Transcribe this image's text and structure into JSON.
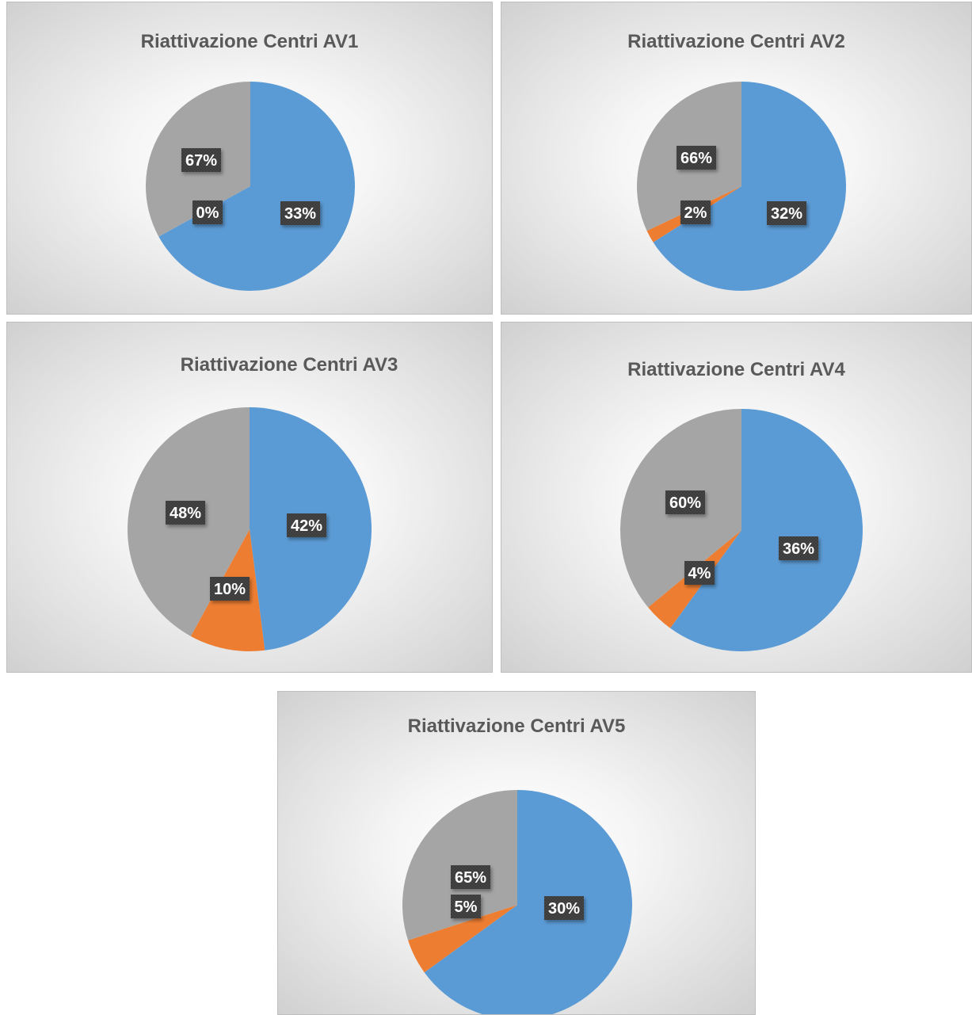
{
  "chart_data": [
    {
      "type": "pie",
      "title": "Riattivazione Centri AV1",
      "slices": [
        {
          "value": 67,
          "label": "67%",
          "color": "#5B9BD5"
        },
        {
          "value": 0,
          "label": "0%",
          "color": "#ED7D31"
        },
        {
          "value": 33,
          "label": "33%",
          "color": "#A5A5A5"
        }
      ]
    },
    {
      "type": "pie",
      "title": "Riattivazione Centri AV2",
      "slices": [
        {
          "value": 66,
          "label": "66%",
          "color": "#5B9BD5"
        },
        {
          "value": 2,
          "label": "2%",
          "color": "#ED7D31"
        },
        {
          "value": 32,
          "label": "32%",
          "color": "#A5A5A5"
        }
      ]
    },
    {
      "type": "pie",
      "title": "Riattivazione Centri AV3",
      "slices": [
        {
          "value": 48,
          "label": "48%",
          "color": "#5B9BD5"
        },
        {
          "value": 10,
          "label": "10%",
          "color": "#ED7D31"
        },
        {
          "value": 42,
          "label": "42%",
          "color": "#A5A5A5"
        }
      ]
    },
    {
      "type": "pie",
      "title": "Riattivazione Centri AV4",
      "slices": [
        {
          "value": 60,
          "label": "60%",
          "color": "#5B9BD5"
        },
        {
          "value": 4,
          "label": "4%",
          "color": "#ED7D31"
        },
        {
          "value": 36,
          "label": "36%",
          "color": "#A5A5A5"
        }
      ]
    },
    {
      "type": "pie",
      "title": "Riattivazione Centri AV5",
      "slices": [
        {
          "value": 65,
          "label": "65%",
          "color": "#5B9BD5"
        },
        {
          "value": 5,
          "label": "5%",
          "color": "#ED7D31"
        },
        {
          "value": 30,
          "label": "30%",
          "color": "#A5A5A5"
        }
      ]
    }
  ]
}
